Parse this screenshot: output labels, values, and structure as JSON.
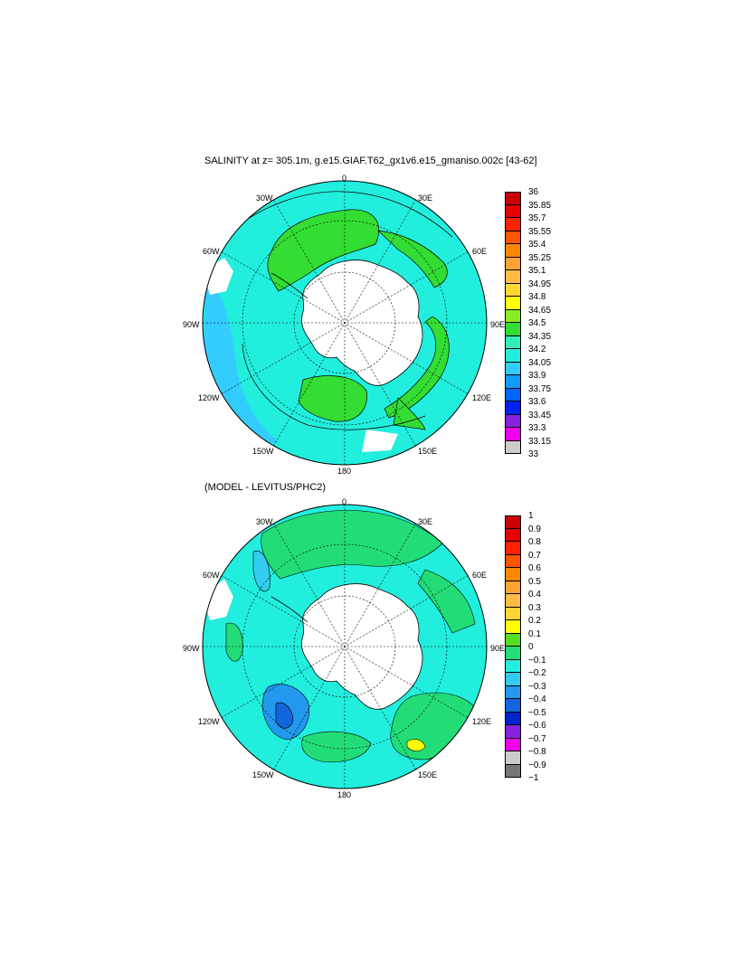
{
  "top_panel": {
    "title": "SALINITY at z= 305.1m, g.e15.GIAF.T62_gx1v6.e15_gmaniso.002c [43-62]",
    "grid_labels": [
      "0",
      "30E",
      "60E",
      "90E",
      "120E",
      "150E",
      "180",
      "150W",
      "120W",
      "90W",
      "60W",
      "30W"
    ],
    "colorbar": {
      "labels": [
        "36",
        "35.85",
        "35.7",
        "35.55",
        "35.4",
        "35.25",
        "35.1",
        "34.95",
        "34.8",
        "34.65",
        "34.5",
        "34.35",
        "34.2",
        "34.05",
        "33.9",
        "33.75",
        "33.6",
        "33.45",
        "33.3",
        "33.15",
        "33"
      ],
      "colors": [
        "#cc0000",
        "#e60000",
        "#ff2200",
        "#ff5500",
        "#ff8800",
        "#ffa233",
        "#ffbb44",
        "#ffd733",
        "#ffff00",
        "#88ee22",
        "#33dd33",
        "#33eebb",
        "#22eedd",
        "#33ccff",
        "#1199ff",
        "#0066ff",
        "#0022ee",
        "#8822dd",
        "#ee00ee",
        "#cccccc"
      ]
    }
  },
  "bottom_panel": {
    "title": "(MODEL - LEVITUS/PHC2)",
    "grid_labels": [
      "0",
      "30E",
      "60E",
      "90E",
      "120E",
      "150E",
      "180",
      "150W",
      "120W",
      "90W",
      "60W",
      "30W"
    ],
    "colorbar": {
      "labels": [
        "1",
        "0.9",
        "0.8",
        "0.7",
        "0.6",
        "0.5",
        "0.4",
        "0.3",
        "0.2",
        "0.1",
        "0",
        "−0.1",
        "−0.2",
        "−0.3",
        "−0.4",
        "−0.5",
        "−0.6",
        "−0.7",
        "−0.8",
        "−0.9",
        "−1"
      ],
      "colors": [
        "#cc0000",
        "#e60000",
        "#ff2200",
        "#ff5500",
        "#ff8800",
        "#ffa233",
        "#ffbb44",
        "#ffd733",
        "#ffff00",
        "#55dd22",
        "#22dd77",
        "#22eedd",
        "#33ccee",
        "#2299ee",
        "#1166dd",
        "#0022cc",
        "#8822dd",
        "#ee00ee",
        "#cccccc",
        "#777777"
      ]
    }
  }
}
